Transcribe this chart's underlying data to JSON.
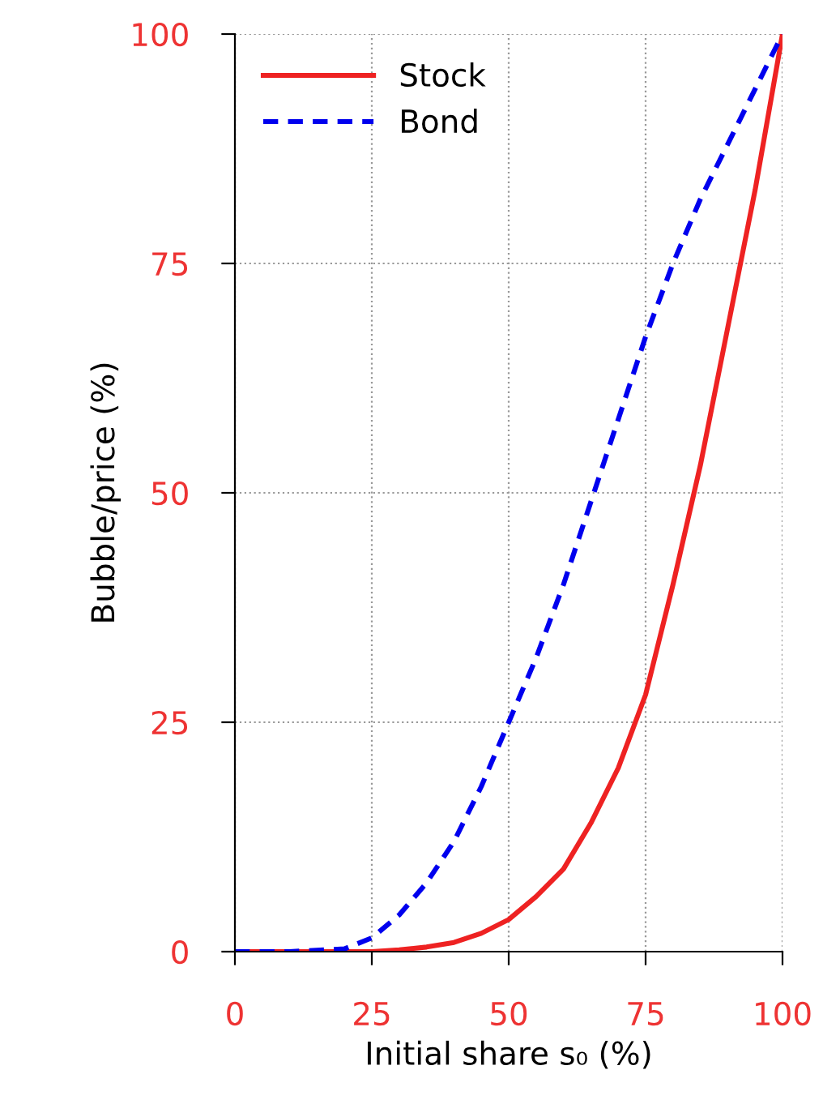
{
  "chart_data": {
    "type": "line",
    "xlabel": "Initial share s₀ (%)",
    "ylabel": "Bubble/price (%)",
    "x": [
      0,
      10,
      20,
      25,
      30,
      35,
      40,
      45,
      50,
      55,
      60,
      65,
      70,
      75,
      80,
      85,
      90,
      95,
      100
    ],
    "series": [
      {
        "name": "Stock",
        "color": "#ee2222",
        "line_style": "solid",
        "values": [
          0,
          0,
          0,
          0,
          0.2,
          0.5,
          1,
          2,
          3.5,
          6,
          9,
          14,
          20,
          28,
          40,
          53,
          68,
          83,
          100
        ]
      },
      {
        "name": "Bond",
        "color": "#0000ee",
        "line_style": "dashed",
        "values": [
          0,
          0,
          0.3,
          1.5,
          4,
          7.5,
          12,
          18,
          25,
          32,
          40,
          49,
          58,
          67,
          75,
          82,
          88,
          94,
          100
        ]
      }
    ],
    "xlim": [
      0,
      100
    ],
    "ylim": [
      0,
      100
    ],
    "xticks": [
      0,
      25,
      50,
      75,
      100
    ],
    "yticks": [
      0,
      25,
      50,
      75,
      100
    ],
    "grid": true,
    "legend": "top left",
    "marker": "none"
  }
}
